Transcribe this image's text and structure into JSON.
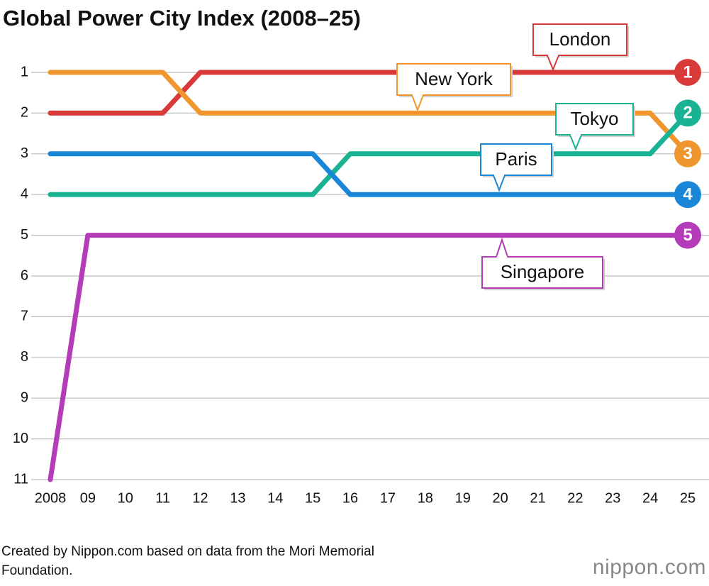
{
  "chart_data": {
    "type": "line",
    "title": "Global Power City Index (2008–25)",
    "categories": [
      "2008",
      "09",
      "10",
      "11",
      "12",
      "13",
      "14",
      "15",
      "16",
      "17",
      "18",
      "19",
      "20",
      "21",
      "22",
      "23",
      "24",
      "25"
    ],
    "series": [
      {
        "name": "London",
        "color": "#d83a3a",
        "values": [
          2,
          2,
          2,
          2,
          1,
          1,
          1,
          1,
          1,
          1,
          1,
          1,
          1,
          1,
          1,
          1,
          1,
          1
        ]
      },
      {
        "name": "New York",
        "color": "#f0962e",
        "values": [
          1,
          1,
          1,
          1,
          2,
          2,
          2,
          2,
          2,
          2,
          2,
          2,
          2,
          2,
          2,
          2,
          2,
          3
        ]
      },
      {
        "name": "Tokyo",
        "color": "#19b394",
        "values": [
          4,
          4,
          4,
          4,
          4,
          4,
          4,
          4,
          3,
          3,
          3,
          3,
          3,
          3,
          3,
          3,
          3,
          2
        ]
      },
      {
        "name": "Paris",
        "color": "#1a86d8",
        "values": [
          3,
          3,
          3,
          3,
          3,
          3,
          3,
          3,
          4,
          4,
          4,
          4,
          4,
          4,
          4,
          4,
          4,
          4
        ]
      },
      {
        "name": "Singapore",
        "color": "#b43cb8",
        "values": [
          11,
          5,
          5,
          5,
          5,
          5,
          5,
          5,
          5,
          5,
          5,
          5,
          5,
          5,
          5,
          5,
          5,
          5
        ]
      }
    ],
    "ylim": [
      11,
      1
    ],
    "yticks": [
      1,
      2,
      3,
      4,
      5,
      6,
      7,
      8,
      9,
      10,
      11
    ],
    "grid": true,
    "source": "Created by Nippon.com based on data from the Mori Memorial Foundation.",
    "logo": "nippon.com"
  }
}
